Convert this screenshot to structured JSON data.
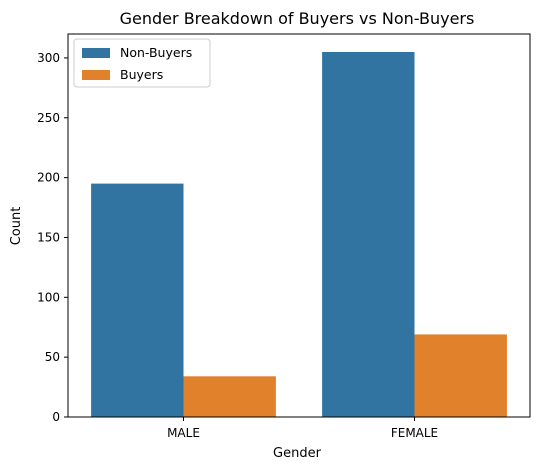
{
  "chart_data": {
    "type": "bar",
    "title": "Gender Breakdown of Buyers vs Non-Buyers",
    "xlabel": "Gender",
    "ylabel": "Count",
    "categories": [
      "MALE",
      "FEMALE"
    ],
    "series": [
      {
        "name": "Non-Buyers",
        "values": [
          195,
          305
        ],
        "color": "#3274a1"
      },
      {
        "name": "Buyers",
        "values": [
          34,
          69
        ],
        "color": "#e1812c"
      }
    ],
    "ylim": [
      0,
      320
    ],
    "yticks": [
      "0",
      "50",
      "100",
      "150",
      "200",
      "250",
      "300"
    ],
    "grid": false,
    "legend_position": "top-left"
  }
}
